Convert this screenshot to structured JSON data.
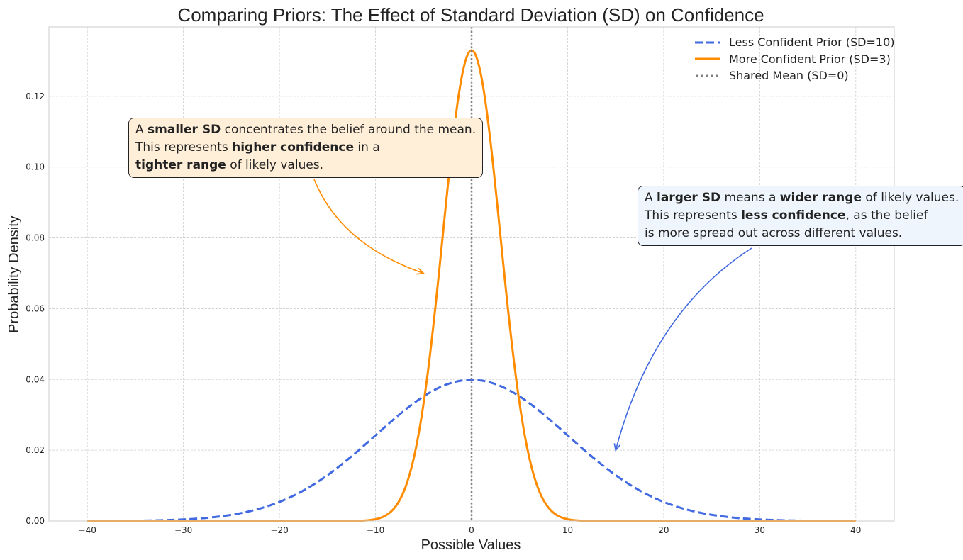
{
  "chart_data": {
    "type": "line",
    "title": "Comparing Priors: The Effect of Standard Deviation (SD) on Confidence",
    "xlabel": "Possible Values",
    "ylabel": "Probability Density",
    "xlim": [
      -44,
      44
    ],
    "ylim": [
      0,
      0.1396
    ],
    "x_range_plotted": [
      -40,
      40
    ],
    "grid": true,
    "legend_placement": "top-right",
    "xticks": [
      -40,
      -30,
      -20,
      -10,
      0,
      10,
      20,
      30,
      40
    ],
    "xtick_labels": [
      "−40",
      "−30",
      "−20",
      "−10",
      "0",
      "10",
      "20",
      "30",
      "40"
    ],
    "yticks": [
      0,
      0.02,
      0.04,
      0.06,
      0.08,
      0.1,
      0.12
    ],
    "ytick_labels": [
      "0.00",
      "0.02",
      "0.04",
      "0.06",
      "0.08",
      "0.10",
      "0.12"
    ],
    "series": [
      {
        "name": "Less Confident Prior (SD=10)",
        "distribution": "normal",
        "mean": 0,
        "sd": 10,
        "peak": 0.0399,
        "color": "#4169e1",
        "style": "dashed"
      },
      {
        "name": "More Confident Prior (SD=3)",
        "distribution": "normal",
        "mean": 0,
        "sd": 3,
        "peak": 0.133,
        "color": "#ff8c00",
        "style": "solid"
      },
      {
        "name": "Shared Mean (SD=0)",
        "x": 0,
        "color": "#808080",
        "style": "dotted",
        "kind": "vline"
      }
    ],
    "annotations": [
      {
        "lines": [
          [
            {
              "t": "A "
            },
            {
              "t": "smaller SD",
              "b": true
            },
            {
              "t": " concentrates the belief around the mean."
            }
          ],
          [
            {
              "t": "This represents "
            },
            {
              "t": "higher confidence",
              "b": true
            },
            {
              "t": " in a"
            }
          ],
          [
            {
              "t": "tighter range",
              "b": true
            },
            {
              "t": " of likely values."
            }
          ]
        ],
        "arrow_to": [
          -5,
          0.07
        ],
        "color": "#ff8c00"
      },
      {
        "lines": [
          [
            {
              "t": "A "
            },
            {
              "t": "larger SD",
              "b": true
            },
            {
              "t": " means a "
            },
            {
              "t": "wider range",
              "b": true
            },
            {
              "t": " of likely values."
            }
          ],
          [
            {
              "t": "This represents "
            },
            {
              "t": "less confidence",
              "b": true
            },
            {
              "t": ", as the belief"
            }
          ],
          [
            {
              "t": "is more spread out across different values."
            }
          ]
        ],
        "arrow_to": [
          15,
          0.02
        ],
        "color": "#4169e1"
      }
    ]
  }
}
